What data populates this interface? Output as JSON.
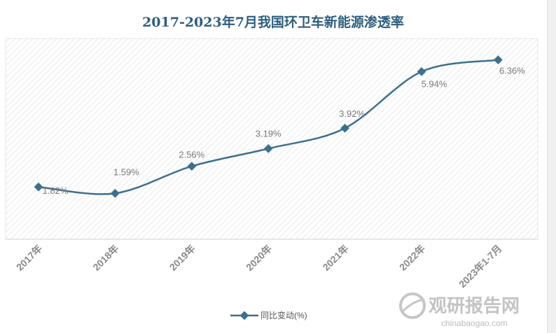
{
  "chart_data": {
    "type": "line",
    "title": "2017-2023年7月我国环卫车新能源渗透率",
    "categories": [
      "2017年",
      "2018年",
      "2019年",
      "2020年",
      "2021年",
      "2022年",
      "2023年1-7月"
    ],
    "series": [
      {
        "name": "同比变动(%)",
        "values": [
          1.82,
          1.59,
          2.56,
          3.19,
          3.92,
          5.94,
          6.36
        ]
      }
    ],
    "data_labels": [
      "1.82%",
      "1.59%",
      "2.56%",
      "3.19%",
      "3.92%",
      "5.94%",
      "6.36%"
    ],
    "ylim": [
      0.0,
      7.0
    ],
    "grid": false,
    "legend": "bottom",
    "colors": {
      "line": "#3d6f8e",
      "title": "#2f5f7e",
      "hatch": "#d9d9d9"
    }
  },
  "watermark": {
    "brand": "观研报告网",
    "url": "chinabaogao.com"
  }
}
